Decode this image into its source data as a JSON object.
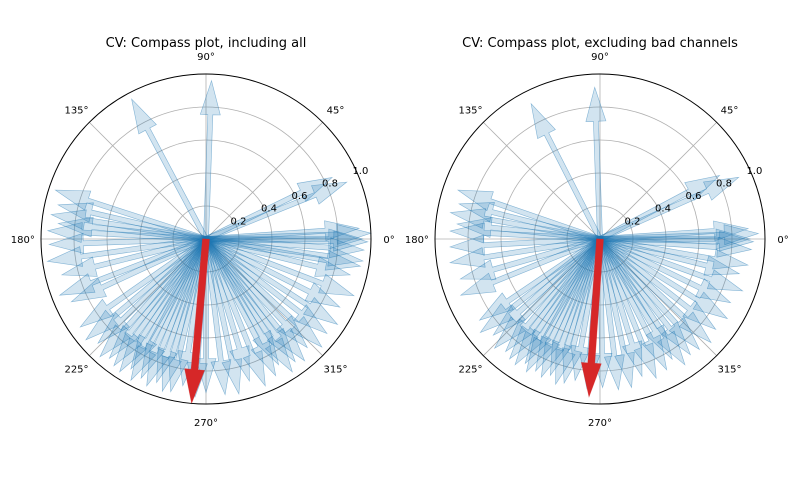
{
  "chart_data": [
    {
      "type": "polar-compass",
      "title": "CV: Compass plot, including all",
      "angle_tick_labels": [
        "0°",
        "45°",
        "90°",
        "135°",
        "180°",
        "225°",
        "270°",
        "315°"
      ],
      "radial_tick_labels": [
        "0.2",
        "0.4",
        "0.6",
        "0.8",
        "1.0"
      ],
      "rlim": [
        0,
        1.0
      ],
      "grid": true,
      "arrow_color": "#1f77b4",
      "mean_arrow_color": "#d62728",
      "arrows": [
        {
          "angle": 2,
          "r": 1.0
        },
        {
          "angle": -1,
          "r": 0.98
        },
        {
          "angle": 0,
          "r": 0.95
        },
        {
          "angle": -4,
          "r": 0.96
        },
        {
          "angle": 4,
          "r": 0.93
        },
        {
          "angle": -8,
          "r": 0.96
        },
        {
          "angle": 22,
          "r": 0.92
        },
        {
          "angle": 26,
          "r": 0.85
        },
        {
          "angle": 88,
          "r": 0.96
        },
        {
          "angle": 118,
          "r": 0.96
        },
        {
          "angle": 162,
          "r": 0.96
        },
        {
          "angle": 167,
          "r": 0.92
        },
        {
          "angle": 171,
          "r": 0.95
        },
        {
          "angle": 174,
          "r": 0.9
        },
        {
          "angle": 177,
          "r": 0.96
        },
        {
          "angle": 182,
          "r": 0.95
        },
        {
          "angle": 188,
          "r": 0.97
        },
        {
          "angle": 194,
          "r": 0.9
        },
        {
          "angle": 201,
          "r": 0.95
        },
        {
          "angle": 205,
          "r": 0.9
        },
        {
          "angle": 215,
          "r": 0.93
        },
        {
          "angle": 220,
          "r": 0.95
        },
        {
          "angle": 224,
          "r": 0.91
        },
        {
          "angle": 228,
          "r": 0.96
        },
        {
          "angle": 231,
          "r": 0.93
        },
        {
          "angle": 234,
          "r": 0.95
        },
        {
          "angle": 237,
          "r": 0.96
        },
        {
          "angle": 240,
          "r": 0.91
        },
        {
          "angle": 242,
          "r": 0.97
        },
        {
          "angle": 245,
          "r": 0.93
        },
        {
          "angle": 248,
          "r": 0.96
        },
        {
          "angle": 251,
          "r": 0.92
        },
        {
          "angle": 254,
          "r": 0.96
        },
        {
          "angle": 257,
          "r": 0.95
        },
        {
          "angle": 261,
          "r": 0.9
        },
        {
          "angle": 266,
          "r": 0.96
        },
        {
          "angle": 270,
          "r": 0.93
        },
        {
          "angle": 277,
          "r": 0.95
        },
        {
          "angle": 282,
          "r": 0.96
        },
        {
          "angle": 287,
          "r": 0.9
        },
        {
          "angle": 292,
          "r": 0.96
        },
        {
          "angle": 297,
          "r": 0.93
        },
        {
          "angle": 300,
          "r": 0.88
        },
        {
          "angle": 303,
          "r": 0.96
        },
        {
          "angle": 306,
          "r": 0.92
        },
        {
          "angle": 309,
          "r": 0.95
        },
        {
          "angle": 313,
          "r": 0.9
        },
        {
          "angle": 317,
          "r": 0.96
        },
        {
          "angle": 322,
          "r": 0.93
        },
        {
          "angle": 327,
          "r": 0.95
        },
        {
          "angle": 333,
          "r": 0.91
        },
        {
          "angle": 339,
          "r": 0.96
        },
        {
          "angle": 346,
          "r": 0.9
        },
        {
          "angle": 350,
          "r": 0.95
        }
      ],
      "mean_arrow": {
        "angle": 265,
        "r": 1.0
      }
    },
    {
      "type": "polar-compass",
      "title": "CV: Compass plot, excluding bad channels",
      "angle_tick_labels": [
        "0°",
        "45°",
        "90°",
        "135°",
        "180°",
        "225°",
        "270°",
        "315°"
      ],
      "radial_tick_labels": [
        "0.2",
        "0.4",
        "0.6",
        "0.8",
        "1.0"
      ],
      "rlim": [
        0,
        1.0
      ],
      "grid": true,
      "arrow_color": "#1f77b4",
      "mean_arrow_color": "#d62728",
      "arrows": [
        {
          "angle": 2,
          "r": 0.96
        },
        {
          "angle": -1,
          "r": 0.93
        },
        {
          "angle": 0,
          "r": 0.91
        },
        {
          "angle": -4,
          "r": 0.92
        },
        {
          "angle": 4,
          "r": 0.9
        },
        {
          "angle": 24,
          "r": 0.92
        },
        {
          "angle": 28,
          "r": 0.82
        },
        {
          "angle": 92,
          "r": 0.92
        },
        {
          "angle": 117,
          "r": 0.92
        },
        {
          "angle": 161,
          "r": 0.91
        },
        {
          "angle": 166,
          "r": 0.88
        },
        {
          "angle": 170,
          "r": 0.92
        },
        {
          "angle": 174,
          "r": 0.87
        },
        {
          "angle": 177,
          "r": 0.91
        },
        {
          "angle": 183,
          "r": 0.91
        },
        {
          "angle": 189,
          "r": 0.92
        },
        {
          "angle": 196,
          "r": 0.88
        },
        {
          "angle": 202,
          "r": 0.91
        },
        {
          "angle": 214,
          "r": 0.88
        },
        {
          "angle": 218,
          "r": 0.92
        },
        {
          "angle": 222,
          "r": 0.87
        },
        {
          "angle": 226,
          "r": 0.92
        },
        {
          "angle": 230,
          "r": 0.89
        },
        {
          "angle": 233,
          "r": 0.91
        },
        {
          "angle": 236,
          "r": 0.92
        },
        {
          "angle": 239,
          "r": 0.88
        },
        {
          "angle": 241,
          "r": 0.92
        },
        {
          "angle": 244,
          "r": 0.89
        },
        {
          "angle": 247,
          "r": 0.91
        },
        {
          "angle": 250,
          "r": 0.88
        },
        {
          "angle": 253,
          "r": 0.92
        },
        {
          "angle": 256,
          "r": 0.9
        },
        {
          "angle": 260,
          "r": 0.87
        },
        {
          "angle": 265,
          "r": 0.91
        },
        {
          "angle": 271,
          "r": 0.9
        },
        {
          "angle": 277,
          "r": 0.92
        },
        {
          "angle": 282,
          "r": 0.92
        },
        {
          "angle": 287,
          "r": 0.87
        },
        {
          "angle": 292,
          "r": 0.91
        },
        {
          "angle": 297,
          "r": 0.89
        },
        {
          "angle": 301,
          "r": 0.85
        },
        {
          "angle": 304,
          "r": 0.92
        },
        {
          "angle": 308,
          "r": 0.89
        },
        {
          "angle": 312,
          "r": 0.9
        },
        {
          "angle": 317,
          "r": 0.92
        },
        {
          "angle": 322,
          "r": 0.89
        },
        {
          "angle": 328,
          "r": 0.91
        },
        {
          "angle": 334,
          "r": 0.88
        },
        {
          "angle": 340,
          "r": 0.92
        },
        {
          "angle": 346,
          "r": 0.87
        },
        {
          "angle": 350,
          "r": 0.91
        }
      ],
      "mean_arrow": {
        "angle": 266,
        "r": 0.96
      }
    }
  ]
}
